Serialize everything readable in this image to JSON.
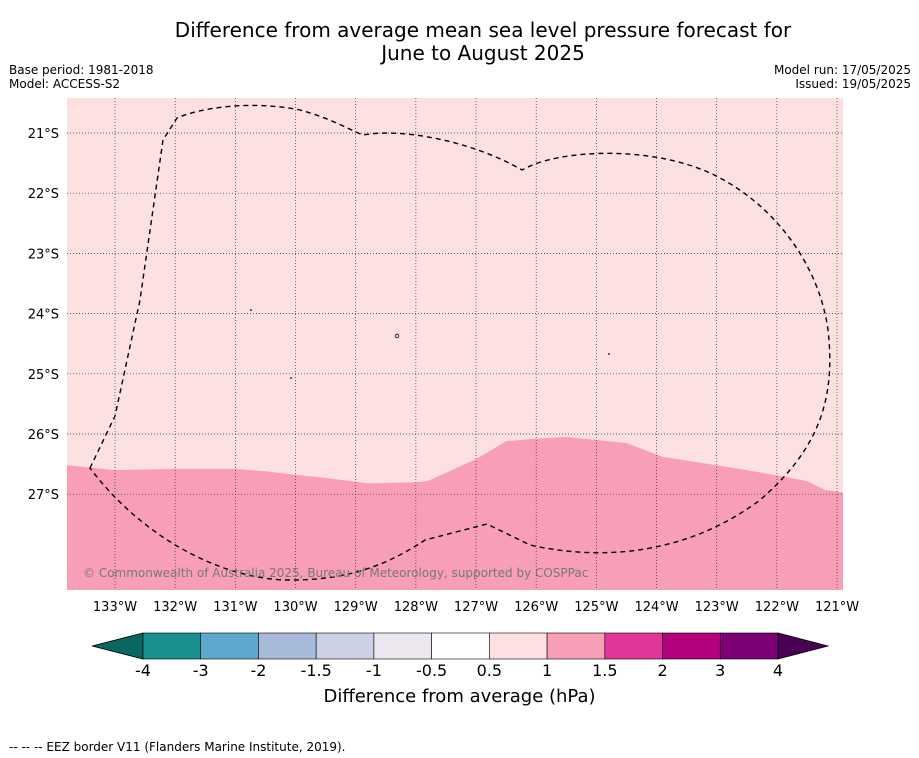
{
  "title_line1": "Difference from average mean sea level pressure forecast for",
  "title_line2": "June to August 2025",
  "base_period": "Base period: 1981-2018",
  "model": "Model: ACCESS-S2",
  "model_run": "Model run: 17/05/2025",
  "issued": "Issued: 19/05/2025",
  "copyright": "© Commonwealth of Australia 2025, Bureau of Meteorology, supported by COSPPac",
  "footer": "--  --  -- EEZ border V11 (Flanders Marine Institute, 2019).",
  "map": {
    "lon_labels": [
      "133°W",
      "132°W",
      "131°W",
      "130°W",
      "129°W",
      "128°W",
      "127°W",
      "126°W",
      "125°W",
      "124°W",
      "123°W",
      "122°W",
      "121°W"
    ],
    "lat_labels": [
      "21°S",
      "22°S",
      "23°S",
      "24°S",
      "25°S",
      "26°S",
      "27°S"
    ],
    "background_color": "#fde0e0",
    "zone_1_to_1_5_color": "#f89fb7",
    "boundary_1_0_hpa": [
      [
        -133.8,
        26.52
      ],
      [
        -133,
        26.6
      ],
      [
        -132,
        26.58
      ],
      [
        -131,
        26.58
      ],
      [
        -130.5,
        26.62
      ],
      [
        -130,
        26.68
      ],
      [
        -129.5,
        26.73
      ],
      [
        -128.8,
        26.82
      ],
      [
        -128,
        26.8
      ],
      [
        -127.8,
        26.78
      ],
      [
        -127,
        26.42
      ],
      [
        -126.5,
        26.12
      ],
      [
        -126,
        26.08
      ],
      [
        -125.5,
        26.05
      ],
      [
        -125,
        26.1
      ],
      [
        -124.5,
        26.15
      ],
      [
        -123.9,
        26.38
      ],
      [
        -123,
        26.52
      ],
      [
        -122.5,
        26.6
      ],
      [
        -121.5,
        26.78
      ],
      [
        -121.2,
        26.93
      ],
      [
        -120.9,
        26.97
      ]
    ]
  },
  "colorbar": {
    "title": "Difference from average (hPa)",
    "tick_labels": [
      "-4",
      "-3",
      "-2",
      "-1.5",
      "-1",
      "-0.5",
      "0.5",
      "1",
      "1.5",
      "2",
      "3",
      "4"
    ],
    "colors": [
      "#1a8f8f",
      "#5fa8cd",
      "#a8bad9",
      "#ccd1e5",
      "#ece6ef",
      "#ffffff",
      "#fde0e0",
      "#f89fb7",
      "#e0359a",
      "#b3007c",
      "#7d0076"
    ],
    "low_extend_color": "#0a6660",
    "high_extend_color": "#4a0055"
  }
}
